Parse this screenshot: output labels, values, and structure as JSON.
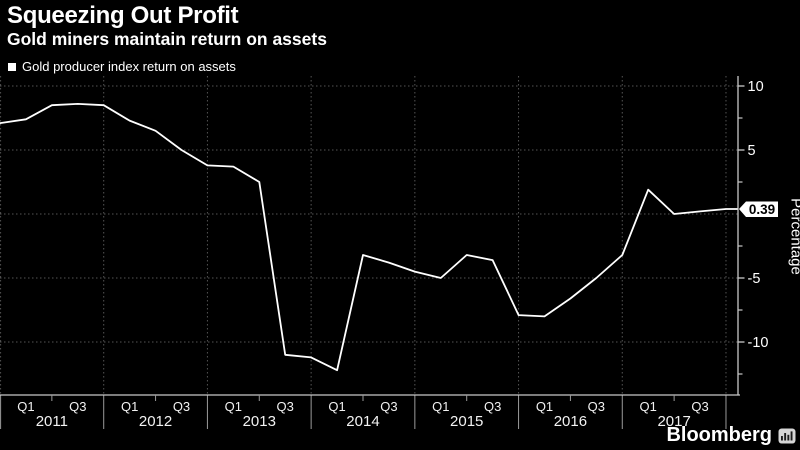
{
  "header": {
    "title": "Squeezing Out Profit",
    "subtitle": "Gold miners maintain return on assets"
  },
  "legend": {
    "label": "Gold producer index return on assets",
    "marker": "filled-square",
    "marker_color": "#ffffff"
  },
  "chart_data": {
    "type": "line",
    "title": "Squeezing Out Profit",
    "series": [
      {
        "name": "Gold producer index return on assets",
        "values": [
          7.4,
          8.5,
          8.6,
          8.5,
          7.3,
          6.5,
          5.0,
          3.8,
          3.7,
          2.5,
          -11.0,
          -11.2,
          -12.2,
          -3.2,
          -3.8,
          -4.5,
          -5.0,
          -3.2,
          -3.6,
          -7.9,
          -8.0,
          -6.6,
          -5.0,
          -3.2,
          1.9,
          0.0,
          0.2,
          0.39
        ]
      }
    ],
    "categories": [
      "Q1 2011",
      "Q2 2011",
      "Q3 2011",
      "Q4 2011",
      "Q1 2012",
      "Q2 2012",
      "Q3 2012",
      "Q4 2012",
      "Q1 2013",
      "Q2 2013",
      "Q3 2013",
      "Q4 2013",
      "Q1 2014",
      "Q2 2014",
      "Q3 2014",
      "Q4 2014",
      "Q1 2015",
      "Q2 2015",
      "Q3 2015",
      "Q4 2015",
      "Q1 2016",
      "Q2 2016",
      "Q3 2016",
      "Q4 2016",
      "Q1 2017",
      "Q2 2017",
      "Q3 2017",
      "Q4 2017"
    ],
    "left_edge_value": 7.1,
    "last_value_label": "0.39",
    "ylabel": "Percentage",
    "y_ticks": [
      10,
      5,
      0,
      -5,
      -10
    ],
    "y_minor_ticks": [
      7.5,
      2.5,
      -2.5,
      -7.5,
      -12.5
    ],
    "ylim": [
      -14.2,
      10.8
    ],
    "x_years": [
      "2011",
      "2012",
      "2013",
      "2014",
      "2015",
      "2016",
      "2017"
    ],
    "x_quarter_labels": [
      "Q1",
      "Q3"
    ],
    "grid": "dotted",
    "legend_position": "top-left",
    "colors": {
      "background": "#000000",
      "line": "#ffffff",
      "grid": "#555555",
      "axis": "#c8c8c8",
      "divider": "#9b9b9b",
      "label": "#f2f2f2",
      "badge_bg": "#ffffff",
      "badge_text": "#000000"
    }
  },
  "branding": {
    "logo": "Bloomberg",
    "logo_icon": "bar-chart-bars"
  }
}
